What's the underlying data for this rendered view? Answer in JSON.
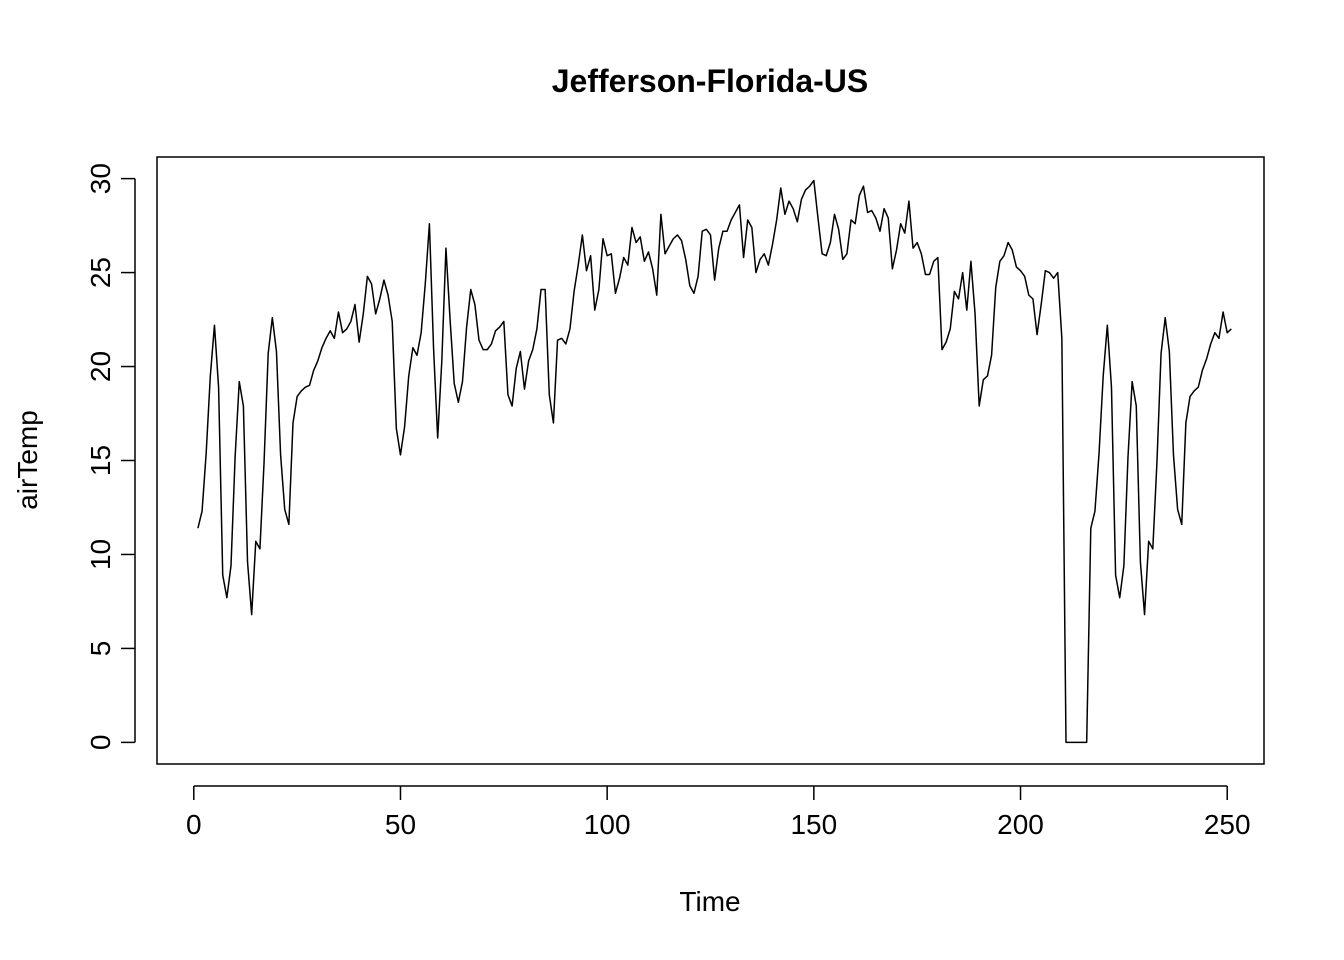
{
  "chart_data": {
    "type": "line",
    "title": "Jefferson-Florida-US",
    "xlabel": "Time",
    "ylabel": "airTemp",
    "xlim": [
      -8.9,
      258.9
    ],
    "ylim": [
      -1.15,
      31.15
    ],
    "x_ticks": [
      0,
      50,
      100,
      150,
      200,
      250
    ],
    "y_ticks": [
      0,
      5,
      10,
      15,
      20,
      25,
      30
    ],
    "grid": false,
    "legend": "none",
    "line_color": "#000000",
    "series": [
      {
        "x_start": 1,
        "x_step": 1,
        "values": [
          11.4,
          12.3,
          15.4,
          19.5,
          22.2,
          18.9,
          8.9,
          7.7,
          9.4,
          15.2,
          19.2,
          17.9,
          9.6,
          6.8,
          10.7,
          10.3,
          14.9,
          20.7,
          22.6,
          20.8,
          15.3,
          12.4,
          11.6,
          17.0,
          18.4,
          18.7,
          18.9,
          19.0,
          19.8,
          20.3,
          21.0,
          21.5,
          21.9,
          21.5,
          22.9,
          21.8,
          22.0,
          22.4,
          23.3,
          21.3,
          22.8,
          24.8,
          24.4,
          22.8,
          23.6,
          24.6,
          23.8,
          22.4,
          16.7,
          15.3,
          16.8,
          19.5,
          21.0,
          20.6,
          21.8,
          24.4,
          27.6,
          21.0,
          16.2,
          20.3,
          26.3,
          22.5,
          19.1,
          18.1,
          19.2,
          22.1,
          24.1,
          23.3,
          21.4,
          20.9,
          20.9,
          21.2,
          21.9,
          22.1,
          22.4,
          18.5,
          17.9,
          19.9,
          20.8,
          18.8,
          20.3,
          20.9,
          22.0,
          24.1,
          24.1,
          18.5,
          17.0,
          21.4,
          21.5,
          21.2,
          22.0,
          24.0,
          25.4,
          27.0,
          25.1,
          25.9,
          23.0,
          24.1,
          26.8,
          25.9,
          26.0,
          23.9,
          24.7,
          25.8,
          25.4,
          27.4,
          26.6,
          26.9,
          25.6,
          26.1,
          25.2,
          23.8,
          28.1,
          26.0,
          26.4,
          26.8,
          27.0,
          26.7,
          25.7,
          24.3,
          23.9,
          24.8,
          27.2,
          27.3,
          27.0,
          24.6,
          26.3,
          27.2,
          27.2,
          27.8,
          28.2,
          28.6,
          25.8,
          27.8,
          27.4,
          25.0,
          25.7,
          26.0,
          25.4,
          26.5,
          27.8,
          29.5,
          28.1,
          28.8,
          28.4,
          27.7,
          28.9,
          29.4,
          29.6,
          29.9,
          27.9,
          26.0,
          25.9,
          26.6,
          28.1,
          27.3,
          25.7,
          26.0,
          27.8,
          27.6,
          29.1,
          29.6,
          28.2,
          28.3,
          27.9,
          27.2,
          28.4,
          27.9,
          25.2,
          26.2,
          27.6,
          27.1,
          28.8,
          26.3,
          26.6,
          26.0,
          24.9,
          24.9,
          25.6,
          25.8,
          20.9,
          21.3,
          22.0,
          24.0,
          23.6,
          25.0,
          23.0,
          25.6,
          22.8,
          17.9,
          19.3,
          19.5,
          20.6,
          24.2,
          25.6,
          25.9,
          26.6,
          26.2,
          25.3,
          25.1,
          24.8,
          23.8,
          23.6,
          21.7,
          23.3,
          25.1,
          25.0,
          24.7,
          25.0,
          21.5,
          0.0,
          0.0,
          0.0,
          0.0,
          0.0,
          0.0,
          11.4,
          12.3,
          15.4,
          19.5,
          22.2,
          18.9,
          8.9,
          7.7,
          9.4,
          15.2,
          19.2,
          17.9,
          9.6,
          6.8,
          10.7,
          10.3,
          14.9,
          20.7,
          22.6,
          20.8,
          15.3,
          12.4,
          11.6,
          17.0,
          18.4,
          18.7,
          18.9,
          19.8,
          20.4,
          21.2,
          21.8,
          21.5,
          22.9,
          21.8,
          22.0
        ]
      }
    ]
  }
}
